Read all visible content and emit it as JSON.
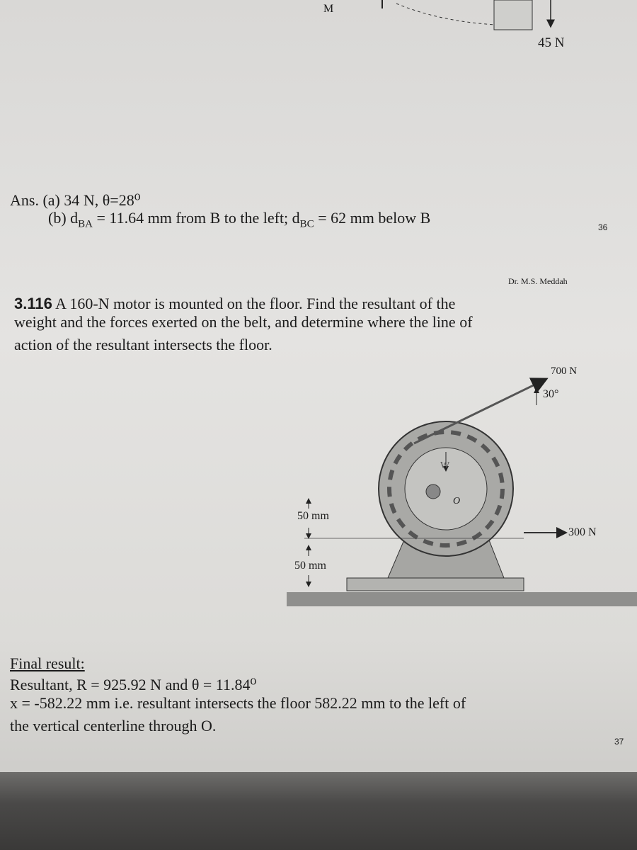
{
  "top_figure": {
    "label_m": "M",
    "force": "45 N"
  },
  "previous_answer": {
    "line_a": "Ans. (a) 34 N, θ=28⁰",
    "line_b": {
      "prefix": "(b) d",
      "sub1": "BA",
      "middle": " = 11.64 mm from B to the left; d",
      "sub2": "BC",
      "suffix": " = 62 mm below B"
    }
  },
  "page_number_1": "36",
  "author": "Dr. M.S. Meddah",
  "problem": {
    "number": "3.116",
    "lines": [
      "A 160-N motor is mounted on the floor. Find the resultant of the",
      "weight and the forces exerted on the belt, and determine where the line of",
      "action of the resultant intersects the floor."
    ]
  },
  "figure": {
    "belt_force": "700 N",
    "angle": "30°",
    "weight": "W",
    "center": "O",
    "dim_upper": "50 mm",
    "dim_lower": "50 mm",
    "side_force": "300 N"
  },
  "final_result": {
    "heading": "Final result:",
    "lines": [
      "Resultant, R = 925.92 N and θ = 11.84⁰",
      "x = -582.22 mm i.e. resultant intersects the floor 582.22 mm to the left of",
      "the vertical centerline through O."
    ]
  },
  "page_number_2": "37"
}
